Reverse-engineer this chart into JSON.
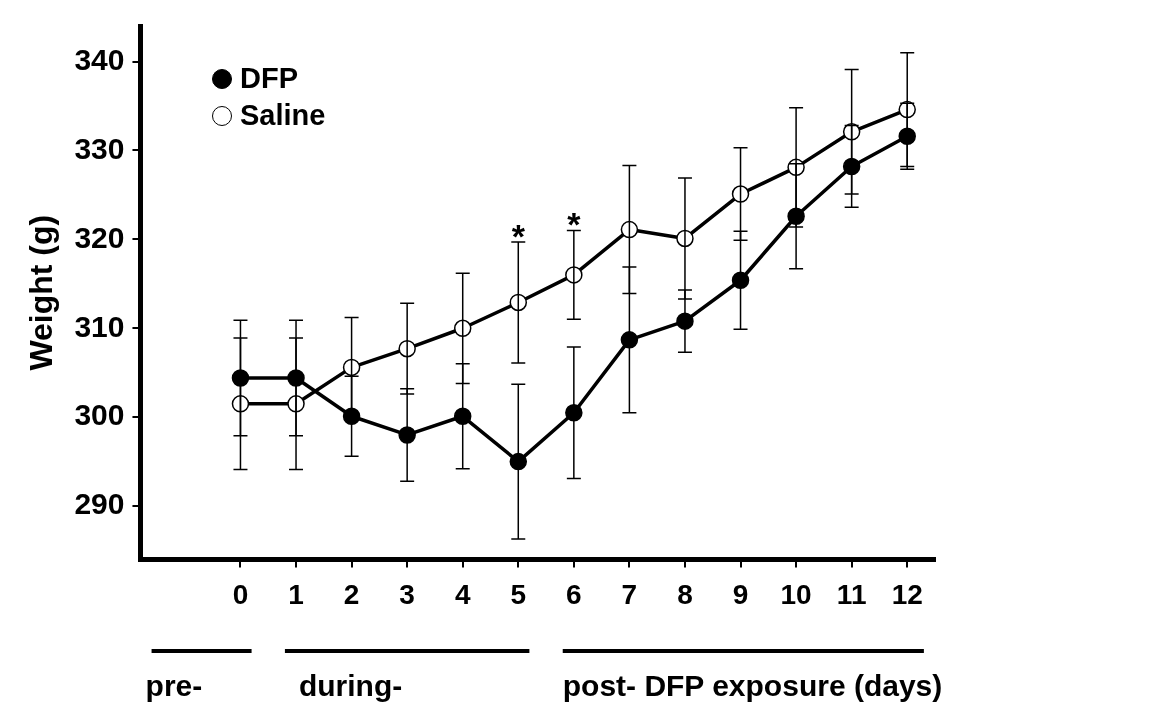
{
  "chart_data": {
    "type": "line",
    "ylabel": "Weight (g)",
    "xlabel": "post- DFP exposure (days)",
    "x": [
      0,
      1,
      2,
      3,
      4,
      5,
      6,
      7,
      8,
      9,
      10,
      11,
      12
    ],
    "xlim": [
      -1.8,
      12.5
    ],
    "xticks": [
      0,
      1,
      2,
      3,
      4,
      5,
      6,
      7,
      8,
      9,
      10,
      11,
      12
    ],
    "ylim": [
      284,
      344
    ],
    "yticks": [
      290,
      300,
      310,
      320,
      330,
      340
    ],
    "grid": false,
    "legend": "top left",
    "marker": "circle",
    "line_style": "solid",
    "series": [
      {
        "name": "DFP",
        "color": "#000000",
        "values": [
          304.4,
          304.4,
          300.1,
          298.0,
          300.1,
          295.0,
          300.5,
          308.7,
          310.8,
          315.4,
          322.6,
          328.2,
          331.6
        ],
        "errors": [
          6.5,
          6.5,
          4.5,
          5.2,
          5.9,
          8.7,
          7.4,
          8.2,
          3.5,
          5.5,
          5.9,
          4.6,
          3.7
        ]
      },
      {
        "name": "Saline",
        "color": "#ffffff",
        "values": [
          301.5,
          301.5,
          305.6,
          307.7,
          310.0,
          312.9,
          316.0,
          321.1,
          320.1,
          325.1,
          328.1,
          332.1,
          334.6
        ],
        "errors": [
          7.4,
          7.4,
          5.6,
          5.1,
          6.2,
          6.8,
          5.0,
          7.2,
          6.8,
          5.2,
          6.7,
          7.0,
          6.4
        ]
      }
    ],
    "annotations": [
      "*",
      "*",
      "pre-",
      "during-"
    ]
  }
}
